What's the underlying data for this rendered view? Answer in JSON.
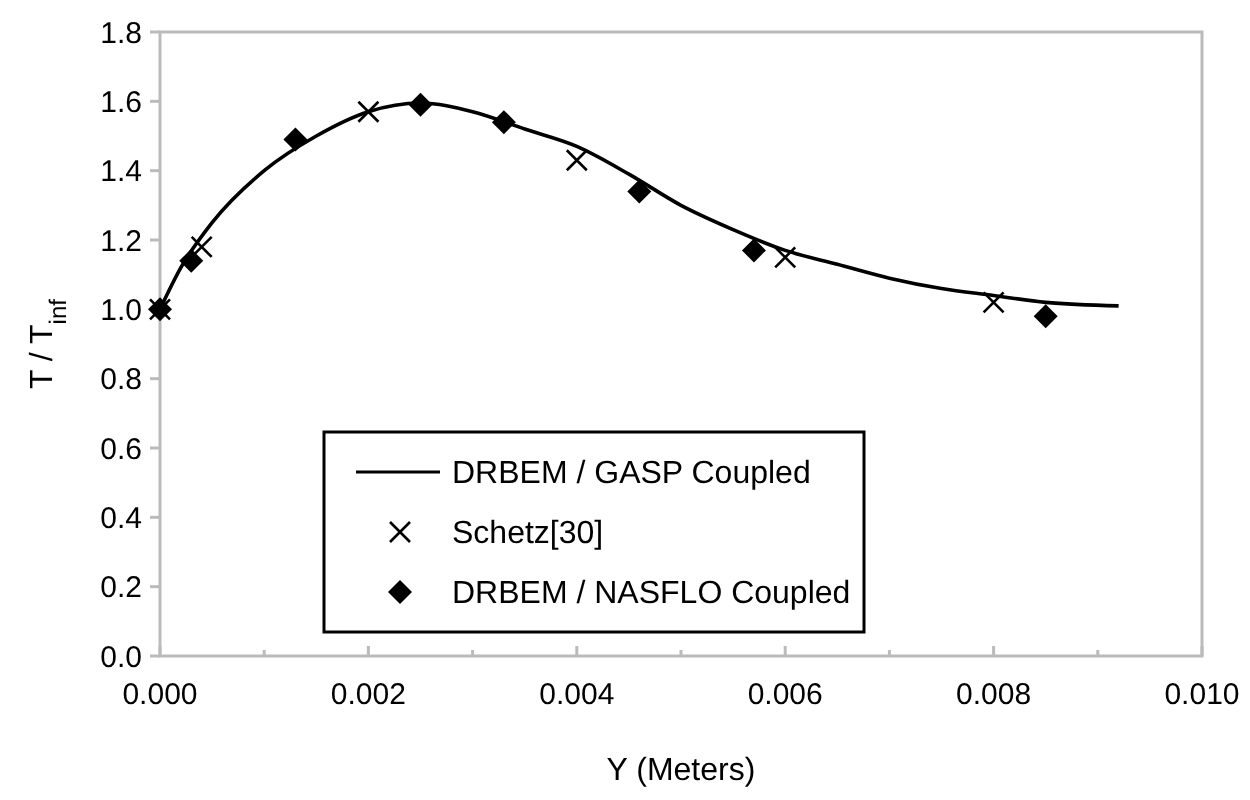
{
  "chart_data": {
    "type": "line",
    "xlabel": "Y (Meters)",
    "ylabel": "T / T$_{inf}$",
    "xlim": [
      0,
      0.01
    ],
    "ylim": [
      0,
      1.8
    ],
    "xticks": [
      "0.000",
      {
        "value": 0.001,
        "label": null
      },
      {
        "value": 0.002,
        "label": "0.002"
      },
      {
        "value": 0.003,
        "label": null
      },
      {
        "value": 0.004,
        "label": "0.004"
      },
      {
        "value": 0.005,
        "label": null
      },
      {
        "value": 0.006,
        "label": "0.006"
      },
      {
        "value": 0.007,
        "label": null
      },
      {
        "value": 0.008,
        "label": "0.008"
      },
      {
        "value": 0.009,
        "label": null
      },
      {
        "value": 0.01,
        "label": "0.010"
      }
    ],
    "yticks": [
      {
        "value": 0,
        "label": "0.0"
      },
      {
        "value": 0.2,
        "label": "0.2"
      },
      {
        "value": 0.4,
        "label": "0.4"
      },
      {
        "value": 0.6,
        "label": "0.6"
      },
      {
        "value": 0.8,
        "label": "0.8"
      },
      {
        "value": 1,
        "label": "1.0"
      },
      {
        "value": 1.2,
        "label": "1.2"
      },
      {
        "value": 1.4,
        "label": "1.4"
      },
      {
        "value": 1.6,
        "label": "1.6"
      },
      {
        "value": 1.8,
        "label": "1.8"
      }
    ],
    "grid": false,
    "legend": "bottom",
    "series": [
      {
        "name": "DRBEM / GASP Coupled",
        "color": "#000000",
        "marker": "none",
        "line_style": "solid",
        "x": [
          0,
          0.0002,
          0.0005,
          0.001,
          0.0015,
          0.002,
          0.0025,
          0.003,
          0.0035,
          0.004,
          0.0045,
          0.005,
          0.0055,
          0.006,
          0.0065,
          0.007,
          0.0075,
          0.008,
          0.0085,
          0.0092
        ],
        "values": [
          1.0,
          1.12,
          1.25,
          1.4,
          1.5,
          1.57,
          1.595,
          1.57,
          1.52,
          1.47,
          1.39,
          1.3,
          1.23,
          1.17,
          1.13,
          1.09,
          1.06,
          1.04,
          1.02,
          1.01
        ]
      },
      {
        "name": "Schetz[30]",
        "type": "scatter",
        "color": "#000000",
        "marker": "cross",
        "x": [
          0,
          0.0004,
          0.002,
          0.004,
          0.006,
          0.008
        ],
        "values": [
          1.0,
          1.18,
          1.57,
          1.43,
          1.15,
          1.02
        ]
      },
      {
        "name": "DRBEM / NASFLO Coupled",
        "type": "scatter",
        "color": "#000000",
        "marker": "diamond",
        "x": [
          0,
          0.0003,
          0.0013,
          0.0025,
          0.0033,
          0.0046,
          0.0057,
          0.0085
        ],
        "values": [
          1.0,
          1.14,
          1.49,
          1.59,
          1.54,
          1.34,
          1.17,
          0.98
        ]
      }
    ]
  }
}
